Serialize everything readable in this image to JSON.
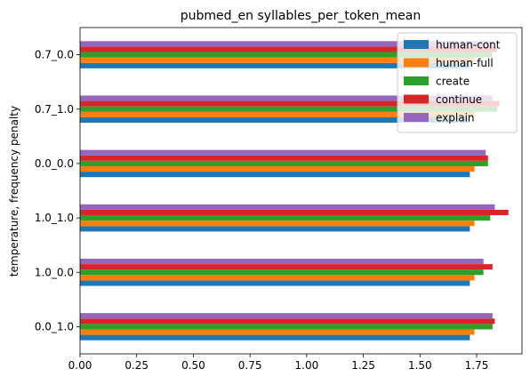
{
  "chart_data": {
    "type": "bar",
    "orientation": "horizontal",
    "title": "pubmed_en syllables_per_token_mean",
    "xlabel": "",
    "ylabel": "temperature, frequency penalty",
    "xlim": [
      0,
      1.95
    ],
    "xticks": [
      "0.00",
      "0.25",
      "0.50",
      "0.75",
      "1.00",
      "1.25",
      "1.50",
      "1.75"
    ],
    "categories": [
      "0.0_1.0",
      "1.0_0.0",
      "1.0_1.0",
      "0.0_0.0",
      "0.7_1.0",
      "0.7_0.0"
    ],
    "series": [
      {
        "name": "human-cont",
        "color": "#1f77b4",
        "values": [
          1.72,
          1.72,
          1.72,
          1.72,
          1.72,
          1.72
        ]
      },
      {
        "name": "human-full",
        "color": "#ff7f0e",
        "values": [
          1.74,
          1.74,
          1.74,
          1.74,
          1.74,
          1.74
        ]
      },
      {
        "name": "create",
        "color": "#2ca02c",
        "values": [
          1.82,
          1.78,
          1.81,
          1.8,
          1.84,
          1.82
        ]
      },
      {
        "name": "continue",
        "color": "#d62728",
        "values": [
          1.83,
          1.82,
          1.89,
          1.8,
          1.85,
          1.84
        ]
      },
      {
        "name": "explain",
        "color": "#9467bd",
        "values": [
          1.82,
          1.78,
          1.83,
          1.79,
          1.82,
          1.82
        ]
      }
    ],
    "grid": false,
    "legend": "top-right"
  }
}
